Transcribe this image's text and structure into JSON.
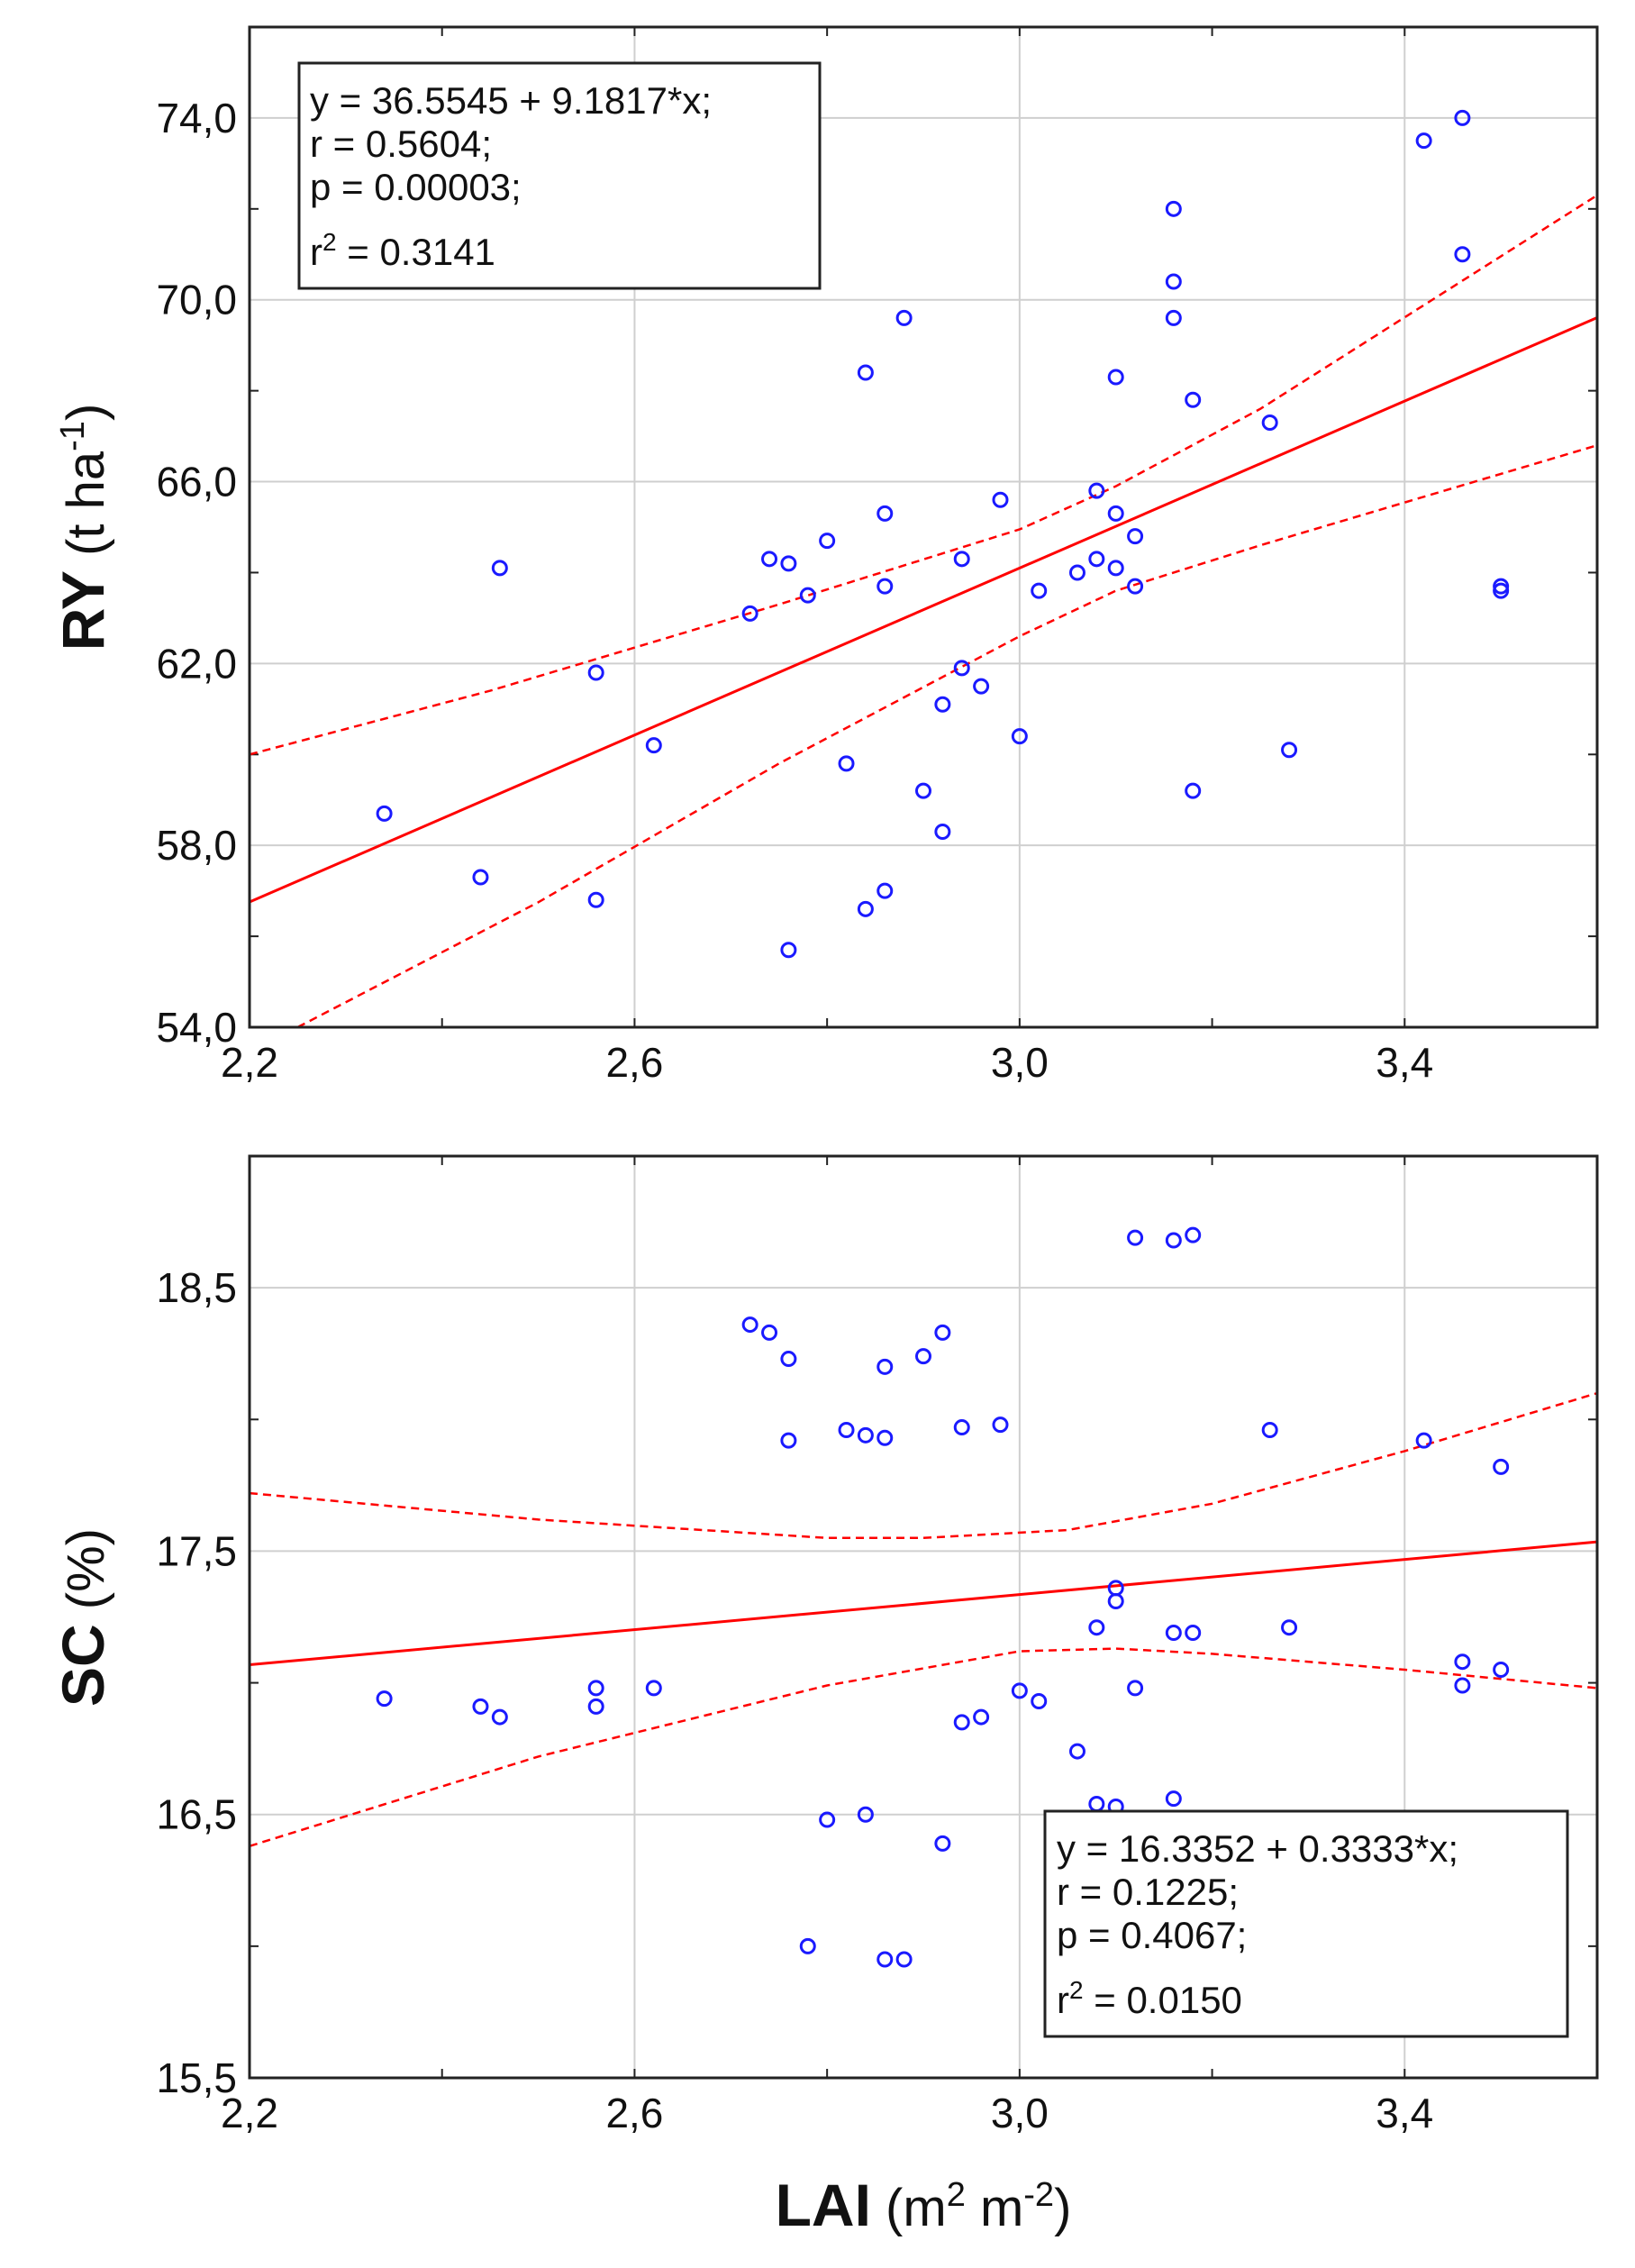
{
  "chart_data": [
    {
      "type": "scatter",
      "id": "ry",
      "xlim": [
        2.2,
        3.6
      ],
      "ylim": [
        54.0,
        76.0
      ],
      "xticks": [
        "2,2",
        "2,6",
        "3,0",
        "3,4"
      ],
      "yticks": [
        "54,0",
        "58,0",
        "62,0",
        "66,0",
        "70,0",
        "74,0"
      ],
      "ylabel_main": "RY",
      "ylabel_unit_prefix": "(t ha",
      "ylabel_unit_sup": "-1",
      "ylabel_unit_suffix": ")",
      "fit": {
        "intercept": 36.5545,
        "slope": 9.1817
      },
      "stats": {
        "equation": "y = 36.5545 + 9.1817*x;",
        "r": "r = 0.5604;",
        "p": "p = 0.00003;",
        "r2_prefix": "r",
        "r2_sup": "2",
        "r2_value": " = 0.3141"
      },
      "ci_upper": [
        [
          2.2,
          60.0
        ],
        [
          2.45,
          61.4
        ],
        [
          2.75,
          63.3
        ],
        [
          3.0,
          64.95
        ],
        [
          3.1,
          65.9
        ],
        [
          3.25,
          67.6
        ],
        [
          3.6,
          72.3
        ]
      ],
      "ci_lower": [
        [
          2.25,
          54.0
        ],
        [
          2.5,
          56.75
        ],
        [
          2.75,
          59.8
        ],
        [
          3.0,
          62.6
        ],
        [
          3.1,
          63.6
        ],
        [
          3.25,
          64.6
        ],
        [
          3.6,
          66.8
        ]
      ],
      "x": [
        2.34,
        2.44,
        2.46,
        2.56,
        2.56,
        2.62,
        2.72,
        2.74,
        2.76,
        2.76,
        2.78,
        2.8,
        2.82,
        2.84,
        2.84,
        2.86,
        2.86,
        2.86,
        2.88,
        2.9,
        2.92,
        2.92,
        2.94,
        2.94,
        2.96,
        2.98,
        3.0,
        3.02,
        3.06,
        3.08,
        3.08,
        3.1,
        3.1,
        3.1,
        3.12,
        3.12,
        3.16,
        3.16,
        3.16,
        3.18,
        3.18,
        3.26,
        3.28,
        3.42,
        3.46,
        3.46,
        3.5,
        3.5
      ],
      "y": [
        58.7,
        57.3,
        64.1,
        61.8,
        56.8,
        60.2,
        63.1,
        64.3,
        64.2,
        55.7,
        63.5,
        64.7,
        59.8,
        68.4,
        56.6,
        65.3,
        63.7,
        57.0,
        69.6,
        59.2,
        61.1,
        58.3,
        64.3,
        61.9,
        61.5,
        65.6,
        60.4,
        63.6,
        64.0,
        65.8,
        64.3,
        68.3,
        65.3,
        64.1,
        64.8,
        63.7,
        72.0,
        70.4,
        69.6,
        67.8,
        59.2,
        67.3,
        60.1,
        73.5,
        74.0,
        71.0,
        63.7,
        63.6
      ]
    },
    {
      "type": "scatter",
      "id": "sc",
      "xlim": [
        2.2,
        3.6
      ],
      "ylim": [
        15.5,
        19.0
      ],
      "xticks": [
        "2,2",
        "2,6",
        "3,0",
        "3,4"
      ],
      "yticks": [
        "15,5",
        "16,5",
        "17,5",
        "18,5"
      ],
      "ylabel_main": "SC",
      "ylabel_unit": "(%)",
      "xlabel_main": "LAI",
      "xlabel_unit_a": "(m",
      "xlabel_sup_a": "2",
      "xlabel_unit_b": " m",
      "xlabel_sup_b": "-2",
      "xlabel_unit_c": ")",
      "fit": {
        "intercept": 16.3352,
        "slope": 0.3333
      },
      "stats": {
        "equation": "y = 16.3352 + 0.3333*x;",
        "r": "r = 0.1225;",
        "p": "p = 0.4067;",
        "r2_prefix": "r",
        "r2_sup": "2",
        "r2_value": " = 0.0150"
      },
      "ci_upper": [
        [
          2.2,
          17.72
        ],
        [
          2.5,
          17.62
        ],
        [
          2.8,
          17.55
        ],
        [
          2.9,
          17.55
        ],
        [
          3.05,
          17.58
        ],
        [
          3.2,
          17.68
        ],
        [
          3.4,
          17.88
        ],
        [
          3.6,
          18.1
        ]
      ],
      "ci_lower": [
        [
          2.2,
          16.38
        ],
        [
          2.5,
          16.72
        ],
        [
          2.8,
          16.99
        ],
        [
          3.0,
          17.12
        ],
        [
          3.1,
          17.13
        ],
        [
          3.2,
          17.11
        ],
        [
          3.4,
          17.05
        ],
        [
          3.6,
          16.98
        ]
      ],
      "x": [
        2.34,
        2.44,
        2.46,
        2.56,
        2.56,
        2.62,
        2.72,
        2.74,
        2.76,
        2.76,
        2.78,
        2.8,
        2.82,
        2.84,
        2.84,
        2.86,
        2.86,
        2.86,
        2.88,
        2.9,
        2.92,
        2.92,
        2.94,
        2.94,
        2.96,
        2.98,
        3.0,
        3.02,
        3.06,
        3.08,
        3.08,
        3.1,
        3.1,
        3.1,
        3.12,
        3.12,
        3.16,
        3.16,
        3.16,
        3.18,
        3.18,
        3.26,
        3.28,
        3.42,
        3.46,
        3.46,
        3.5,
        3.5
      ],
      "y": [
        16.94,
        16.91,
        16.87,
        16.98,
        16.91,
        16.98,
        18.36,
        18.33,
        18.23,
        17.92,
        16.0,
        16.48,
        17.96,
        16.5,
        17.94,
        18.2,
        17.93,
        15.95,
        15.95,
        18.24,
        18.33,
        16.39,
        16.85,
        17.97,
        16.87,
        17.98,
        16.97,
        16.93,
        16.74,
        17.21,
        16.54,
        17.36,
        17.31,
        16.53,
        16.98,
        18.69,
        18.68,
        17.19,
        16.56,
        18.7,
        17.19,
        17.96,
        17.21,
        17.92,
        17.08,
        16.99,
        17.82,
        17.05
      ]
    }
  ]
}
